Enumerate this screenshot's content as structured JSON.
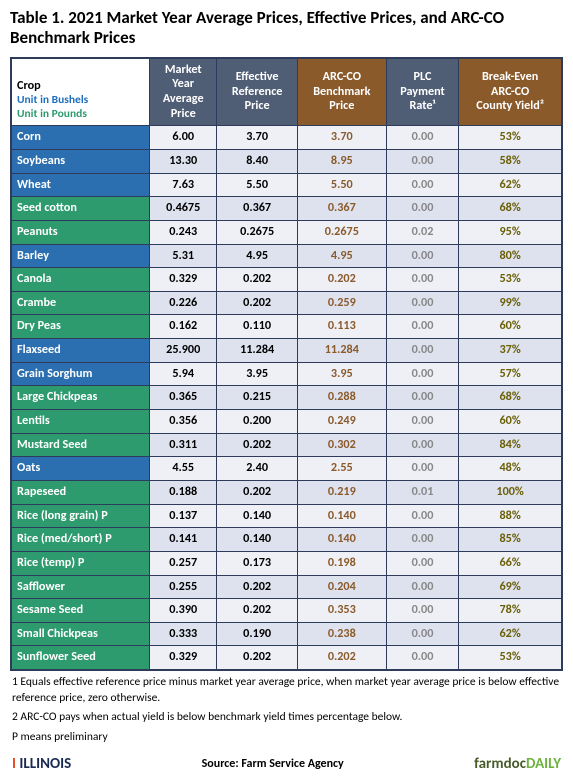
{
  "title": "Table 1.  2021 Market Year Average Prices, Effective Prices, and ARC-CO Benchmark Prices",
  "header_bg_dark": "#4f5d75",
  "header_bg_brown": "#8b5a2b",
  "crop_blue": "#2b6fb0",
  "crop_green": "#2e9b6f",
  "columns": [
    {
      "label": "Market\nYear\nAverage\nPrice",
      "bg": "dark"
    },
    {
      "label": "Effective\nReference\nPrice",
      "bg": "dark"
    },
    {
      "label": "ARC-CO\nBenchmark\nPrice",
      "bg": "brown"
    },
    {
      "label": "PLC\nPayment\nRate¹",
      "bg": "dark"
    },
    {
      "label": "Break-Even\nARC-CO\nCounty Yield²",
      "bg": "brown"
    }
  ],
  "crop_header": "Crop",
  "unit_bu": "Unit in Bushels",
  "unit_lb": "Unit in Pounds",
  "col_text_colors": [
    "#000000",
    "#000000",
    "#8b5a2b",
    "#888888",
    "#6b6008"
  ],
  "row_bg_even": "#eef0f6",
  "row_bg_odd": "#dee2ee",
  "rows": [
    {
      "crop": "Corn",
      "unit": "bu",
      "v": [
        "6.00",
        "3.70",
        "3.70",
        "0.00",
        "53%"
      ]
    },
    {
      "crop": "Soybeans",
      "unit": "bu",
      "v": [
        "13.30",
        "8.40",
        "8.95",
        "0.00",
        "58%"
      ]
    },
    {
      "crop": "Wheat",
      "unit": "bu",
      "v": [
        "7.63",
        "5.50",
        "5.50",
        "0.00",
        "62%"
      ]
    },
    {
      "crop": "Seed cotton",
      "unit": "lb",
      "v": [
        "0.4675",
        "0.367",
        "0.367",
        "0.00",
        "68%"
      ]
    },
    {
      "crop": "Peanuts",
      "unit": "lb",
      "v": [
        "0.243",
        "0.2675",
        "0.2675",
        "0.02",
        "95%"
      ]
    },
    {
      "crop": "Barley",
      "unit": "bu",
      "v": [
        "5.31",
        "4.95",
        "4.95",
        "0.00",
        "80%"
      ]
    },
    {
      "crop": "Canola",
      "unit": "lb",
      "v": [
        "0.329",
        "0.202",
        "0.202",
        "0.00",
        "53%"
      ]
    },
    {
      "crop": "Crambe",
      "unit": "lb",
      "v": [
        "0.226",
        "0.202",
        "0.259",
        "0.00",
        "99%"
      ]
    },
    {
      "crop": "Dry Peas",
      "unit": "lb",
      "v": [
        "0.162",
        "0.110",
        "0.113",
        "0.00",
        "60%"
      ]
    },
    {
      "crop": "Flaxseed",
      "unit": "bu",
      "v": [
        "25.900",
        "11.284",
        "11.284",
        "0.00",
        "37%"
      ]
    },
    {
      "crop": "Grain Sorghum",
      "unit": "bu",
      "v": [
        "5.94",
        "3.95",
        "3.95",
        "0.00",
        "57%"
      ]
    },
    {
      "crop": "Large Chickpeas",
      "unit": "lb",
      "v": [
        "0.365",
        "0.215",
        "0.288",
        "0.00",
        "68%"
      ]
    },
    {
      "crop": "Lentils",
      "unit": "lb",
      "v": [
        "0.356",
        "0.200",
        "0.249",
        "0.00",
        "60%"
      ]
    },
    {
      "crop": "Mustard Seed",
      "unit": "lb",
      "v": [
        "0.311",
        "0.202",
        "0.302",
        "0.00",
        "84%"
      ]
    },
    {
      "crop": "Oats",
      "unit": "bu",
      "v": [
        "4.55",
        "2.40",
        "2.55",
        "0.00",
        "48%"
      ]
    },
    {
      "crop": "Rapeseed",
      "unit": "lb",
      "v": [
        "0.188",
        "0.202",
        "0.219",
        "0.01",
        "100%"
      ]
    },
    {
      "crop": "Rice (long grain) P",
      "unit": "lb",
      "v": [
        "0.137",
        "0.140",
        "0.140",
        "0.00",
        "88%"
      ]
    },
    {
      "crop": "Rice (med/short) P",
      "unit": "lb",
      "v": [
        "0.141",
        "0.140",
        "0.140",
        "0.00",
        "85%"
      ]
    },
    {
      "crop": "Rice (temp) P",
      "unit": "lb",
      "v": [
        "0.257",
        "0.173",
        "0.198",
        "0.00",
        "66%"
      ]
    },
    {
      "crop": "Safflower",
      "unit": "lb",
      "v": [
        "0.255",
        "0.202",
        "0.204",
        "0.00",
        "69%"
      ]
    },
    {
      "crop": "Sesame Seed",
      "unit": "lb",
      "v": [
        "0.390",
        "0.202",
        "0.353",
        "0.00",
        "78%"
      ]
    },
    {
      "crop": "Small Chickpeas",
      "unit": "lb",
      "v": [
        "0.333",
        "0.190",
        "0.238",
        "0.00",
        "62%"
      ]
    },
    {
      "crop": "Sunflower Seed",
      "unit": "lb",
      "v": [
        "0.329",
        "0.202",
        "0.202",
        "0.00",
        "53%"
      ]
    }
  ],
  "legend": [
    "1 Equals effective reference price minus market year average price, when market year average price is below effective reference price, zero otherwise.",
    "2 ARC-CO pays when actual yield is below benchmark yield times percentage below.",
    "P means preliminary"
  ],
  "footer": {
    "illinois": "ILLINOIS",
    "source": "Source:  Farm Service Agency",
    "farmdoc1": "farmdoc",
    "farmdoc2": "DAILY"
  }
}
